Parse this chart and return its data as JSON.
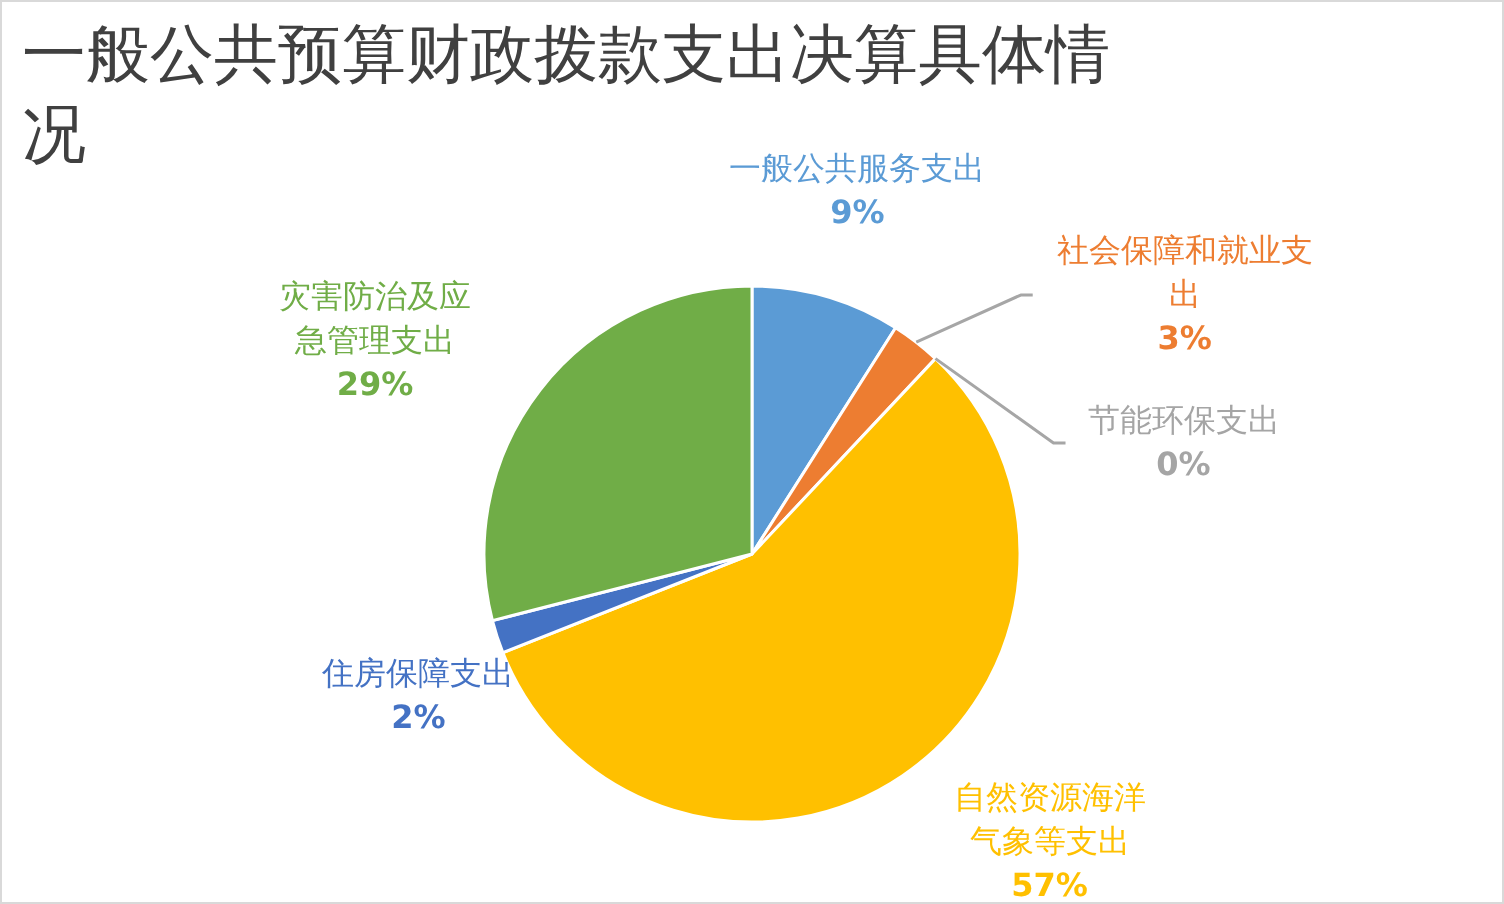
{
  "chart_data": {
    "type": "pie",
    "title": "一般公共预算财政拨款支出决算具体情况",
    "categories": [
      "一般公共服务支出",
      "社会保障和就业支出",
      "节能环保支出",
      "自然资源海洋气象等支出",
      "住房保障支出",
      "灾害防治及应急管理支出"
    ],
    "values": [
      9,
      3,
      0,
      57,
      2,
      29
    ],
    "value_labels": [
      "9%",
      "3%",
      "0%",
      "57%",
      "2%",
      "29%"
    ],
    "colors": [
      "#5b9bd5",
      "#ed7d31",
      "#a5a5a5",
      "#ffc000",
      "#4472c4",
      "#70ad47"
    ]
  }
}
